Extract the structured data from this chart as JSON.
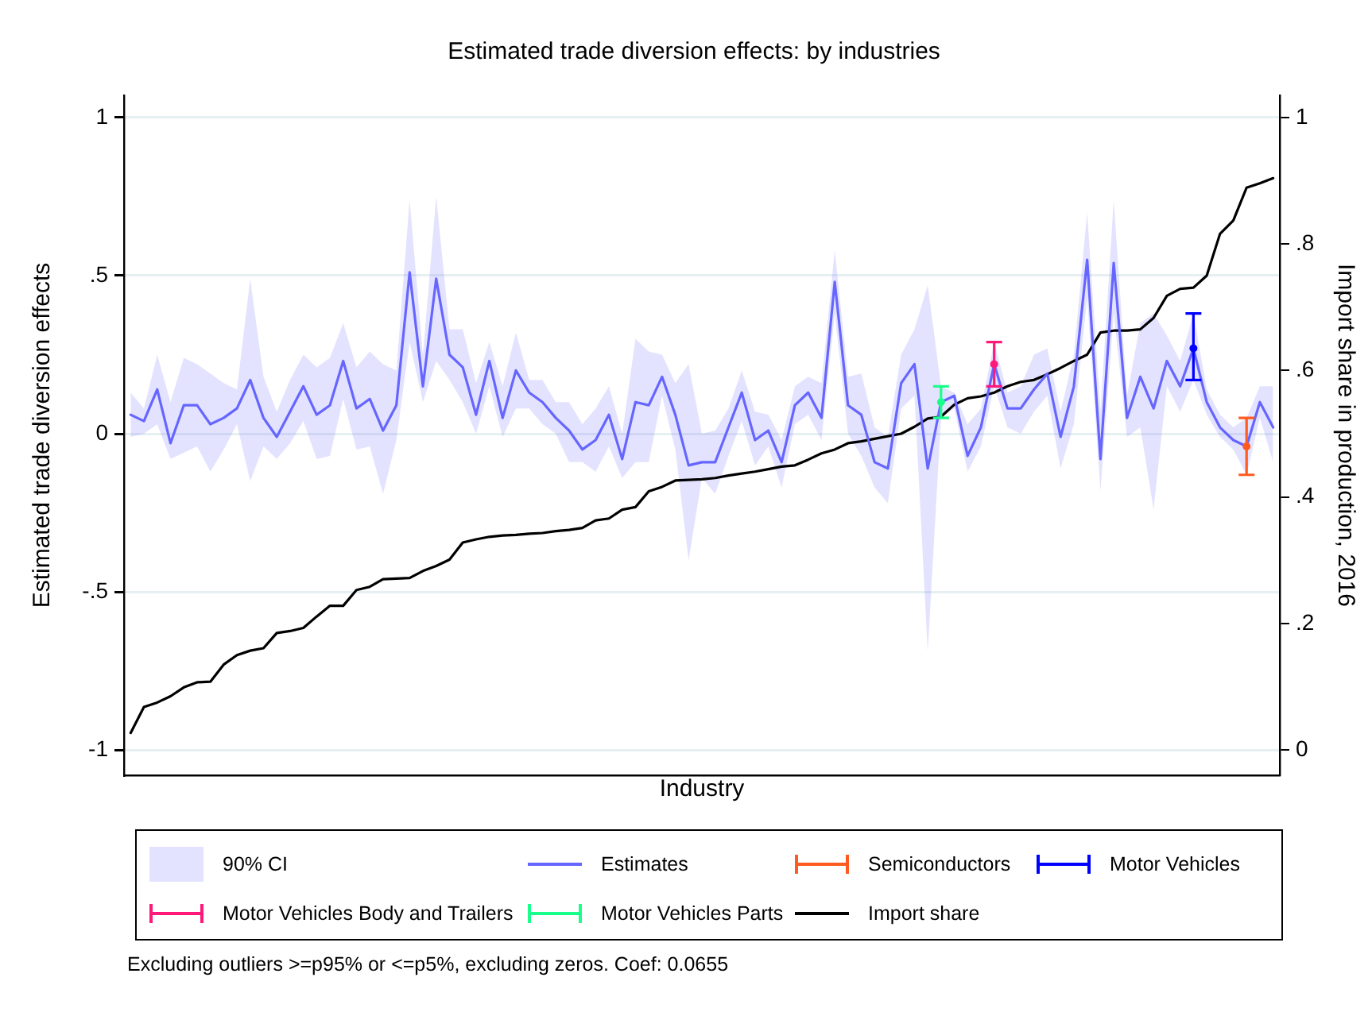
{
  "chart_data": {
    "type": "line",
    "title": "Estimated trade diversion effects: by industries",
    "xlabel": "Industry",
    "ylabel": "Estimated trade diversion effects",
    "y2label": "Import share in production, 2016",
    "categories": [
      null,
      null,
      null,
      null,
      null,
      null,
      null,
      null,
      null,
      null,
      null,
      null,
      null,
      null,
      null,
      null,
      null,
      null,
      null,
      null,
      null,
      null,
      null,
      null,
      null,
      null,
      null,
      null,
      null,
      null,
      null,
      null,
      null,
      null,
      null,
      null,
      null,
      null,
      null,
      null,
      null,
      null,
      null,
      null,
      null,
      null,
      null,
      null,
      null,
      null,
      null,
      null,
      null,
      null,
      null,
      null,
      null,
      null,
      null,
      null,
      null,
      null,
      null,
      null,
      null,
      null,
      null,
      null,
      null,
      null,
      null,
      null,
      null,
      null,
      null,
      null,
      null,
      null,
      null,
      null,
      null,
      null,
      null,
      null,
      null,
      null,
      null
    ],
    "series": [
      {
        "name": "Estimates",
        "color": "#6666ff",
        "lower": [
          -0.01,
          0.0,
          0.03,
          -0.08,
          -0.06,
          -0.04,
          -0.12,
          -0.05,
          0.03,
          -0.15,
          -0.04,
          -0.08,
          -0.03,
          0.04,
          -0.08,
          -0.07,
          0.11,
          -0.05,
          -0.04,
          -0.19,
          -0.02,
          0.29,
          0.1,
          0.23,
          0.17,
          0.1,
          0.0,
          0.15,
          -0.01,
          0.08,
          0.08,
          0.03,
          0.0,
          -0.09,
          -0.09,
          -0.12,
          -0.04,
          -0.14,
          -0.09,
          -0.09,
          0.12,
          -0.05,
          -0.4,
          -0.14,
          -0.19,
          -0.07,
          0.04,
          -0.1,
          -0.04,
          -0.17,
          0.03,
          0.06,
          -0.02,
          0.38,
          0.0,
          -0.07,
          -0.17,
          -0.22,
          0.08,
          0.12,
          -0.69,
          0.05,
          0.08,
          -0.12,
          -0.04,
          0.15,
          0.02,
          0.0,
          0.07,
          0.12,
          -0.11,
          0.03,
          0.43,
          -0.18,
          0.38,
          -0.01,
          0.02,
          -0.24,
          0.15,
          0.07,
          0.17,
          0.06,
          -0.01,
          -0.05,
          -0.13,
          0.05,
          -0.09
        ],
        "upper": [
          0.13,
          0.08,
          0.25,
          0.1,
          0.24,
          0.22,
          0.19,
          0.16,
          0.14,
          0.49,
          0.18,
          0.07,
          0.17,
          0.25,
          0.21,
          0.24,
          0.35,
          0.21,
          0.26,
          0.22,
          0.2,
          0.74,
          0.25,
          0.75,
          0.33,
          0.33,
          0.16,
          0.29,
          0.15,
          0.32,
          0.17,
          0.17,
          0.1,
          0.1,
          0.03,
          0.08,
          0.15,
          0.0,
          0.3,
          0.26,
          0.25,
          0.16,
          0.22,
          0.0,
          0.01,
          0.08,
          0.2,
          0.07,
          0.06,
          -0.02,
          0.15,
          0.18,
          0.16,
          0.58,
          0.18,
          0.19,
          0.02,
          -0.01,
          0.25,
          0.33,
          0.47,
          0.15,
          0.13,
          0.03,
          0.08,
          0.29,
          0.13,
          0.15,
          0.25,
          0.27,
          0.07,
          0.25,
          0.7,
          0.07,
          0.74,
          0.12,
          0.35,
          0.38,
          0.31,
          0.23,
          0.38,
          0.14,
          0.06,
          0.02,
          0.05,
          0.15,
          0.15
        ],
        "values": [
          0.06,
          0.04,
          0.14,
          -0.03,
          0.09,
          0.09,
          0.03,
          0.05,
          0.08,
          0.17,
          0.05,
          -0.01,
          0.07,
          0.15,
          0.06,
          0.09,
          0.23,
          0.08,
          0.11,
          0.01,
          0.09,
          0.51,
          0.15,
          0.49,
          0.25,
          0.21,
          0.06,
          0.23,
          0.05,
          0.2,
          0.13,
          0.1,
          0.05,
          0.01,
          -0.05,
          -0.02,
          0.06,
          -0.08,
          0.1,
          0.09,
          0.18,
          0.06,
          -0.1,
          -0.09,
          -0.09,
          0.02,
          0.13,
          -0.02,
          0.01,
          -0.09,
          0.09,
          0.13,
          0.05,
          0.48,
          0.09,
          0.06,
          -0.09,
          -0.11,
          0.16,
          0.22,
          -0.11,
          0.1,
          0.12,
          -0.07,
          0.02,
          0.22,
          0.08,
          0.08,
          0.14,
          0.19,
          -0.01,
          0.15,
          0.55,
          -0.08,
          0.54,
          0.05,
          0.18,
          0.08,
          0.23,
          0.15,
          0.27,
          0.1,
          0.02,
          -0.02,
          -0.04,
          0.1,
          0.02
        ]
      },
      {
        "name": "Semiconductors",
        "type": "scatter",
        "color": "#ff5a1f",
        "values": [
          null,
          null,
          null,
          null,
          null,
          null,
          null,
          null,
          null,
          null,
          null,
          null,
          null,
          null,
          null,
          null,
          null,
          null,
          null,
          null,
          null,
          null,
          null,
          null,
          null,
          null,
          null,
          null,
          null,
          null,
          null,
          null,
          null,
          null,
          null,
          null,
          null,
          null,
          null,
          null,
          null,
          null,
          null,
          null,
          null,
          null,
          null,
          null,
          null,
          null,
          null,
          null,
          null,
          null,
          null,
          null,
          null,
          null,
          null,
          null,
          null,
          null,
          null,
          null,
          null,
          null,
          null,
          null,
          null,
          null,
          null,
          null,
          null,
          null,
          null,
          null,
          null,
          null,
          null,
          null,
          null,
          null,
          null,
          null,
          -0.04,
          null,
          null
        ],
        "errors": [
          null,
          null,
          null,
          null,
          null,
          null,
          null,
          null,
          null,
          null,
          null,
          null,
          null,
          null,
          null,
          null,
          null,
          null,
          null,
          null,
          null,
          null,
          null,
          null,
          null,
          null,
          null,
          null,
          null,
          null,
          null,
          null,
          null,
          null,
          null,
          null,
          null,
          null,
          null,
          null,
          null,
          null,
          null,
          null,
          null,
          null,
          null,
          null,
          null,
          null,
          null,
          null,
          null,
          null,
          null,
          null,
          null,
          null,
          null,
          null,
          null,
          null,
          null,
          null,
          null,
          null,
          null,
          null,
          null,
          null,
          null,
          null,
          null,
          null,
          null,
          null,
          null,
          null,
          null,
          null,
          null,
          null,
          null,
          null,
          [
            -0.13,
            0.05
          ],
          null,
          null
        ]
      },
      {
        "name": "Motor Vehicles",
        "type": "scatter",
        "color": "#0000ff",
        "values": [
          null,
          null,
          null,
          null,
          null,
          null,
          null,
          null,
          null,
          null,
          null,
          null,
          null,
          null,
          null,
          null,
          null,
          null,
          null,
          null,
          null,
          null,
          null,
          null,
          null,
          null,
          null,
          null,
          null,
          null,
          null,
          null,
          null,
          null,
          null,
          null,
          null,
          null,
          null,
          null,
          null,
          null,
          null,
          null,
          null,
          null,
          null,
          null,
          null,
          null,
          null,
          null,
          null,
          null,
          null,
          null,
          null,
          null,
          null,
          null,
          null,
          null,
          null,
          null,
          null,
          null,
          null,
          null,
          null,
          null,
          null,
          null,
          null,
          null,
          null,
          null,
          null,
          null,
          null,
          null,
          0.27,
          null,
          null,
          null,
          null,
          null,
          null
        ],
        "errors": [
          null,
          null,
          null,
          null,
          null,
          null,
          null,
          null,
          null,
          null,
          null,
          null,
          null,
          null,
          null,
          null,
          null,
          null,
          null,
          null,
          null,
          null,
          null,
          null,
          null,
          null,
          null,
          null,
          null,
          null,
          null,
          null,
          null,
          null,
          null,
          null,
          null,
          null,
          null,
          null,
          null,
          null,
          null,
          null,
          null,
          null,
          null,
          null,
          null,
          null,
          null,
          null,
          null,
          null,
          null,
          null,
          null,
          null,
          null,
          null,
          null,
          null,
          null,
          null,
          null,
          null,
          null,
          null,
          null,
          null,
          null,
          null,
          null,
          null,
          null,
          null,
          null,
          null,
          null,
          null,
          [
            0.17,
            0.38
          ],
          null,
          null,
          null,
          null,
          null,
          null
        ]
      },
      {
        "name": "Motor Vehicles Body and Trailers",
        "type": "scatter",
        "color": "#ff1a7a",
        "values": [
          null,
          null,
          null,
          null,
          null,
          null,
          null,
          null,
          null,
          null,
          null,
          null,
          null,
          null,
          null,
          null,
          null,
          null,
          null,
          null,
          null,
          null,
          null,
          null,
          null,
          null,
          null,
          null,
          null,
          null,
          null,
          null,
          null,
          null,
          null,
          null,
          null,
          null,
          null,
          null,
          null,
          null,
          null,
          null,
          null,
          null,
          null,
          null,
          null,
          null,
          null,
          null,
          null,
          null,
          null,
          null,
          null,
          null,
          null,
          null,
          null,
          null,
          null,
          null,
          null,
          0.22,
          null,
          null,
          null,
          null,
          null,
          null,
          null,
          null,
          null,
          null,
          null,
          null,
          null,
          null,
          null,
          null,
          null,
          null,
          null,
          null,
          null
        ],
        "errors": [
          null,
          null,
          null,
          null,
          null,
          null,
          null,
          null,
          null,
          null,
          null,
          null,
          null,
          null,
          null,
          null,
          null,
          null,
          null,
          null,
          null,
          null,
          null,
          null,
          null,
          null,
          null,
          null,
          null,
          null,
          null,
          null,
          null,
          null,
          null,
          null,
          null,
          null,
          null,
          null,
          null,
          null,
          null,
          null,
          null,
          null,
          null,
          null,
          null,
          null,
          null,
          null,
          null,
          null,
          null,
          null,
          null,
          null,
          null,
          null,
          null,
          null,
          null,
          null,
          null,
          [
            0.15,
            0.29
          ],
          null,
          null,
          null,
          null,
          null,
          null,
          null,
          null,
          null,
          null,
          null,
          null,
          null,
          null,
          null,
          null,
          null,
          null,
          null,
          null,
          null
        ]
      },
      {
        "name": "Motor Vehicles Parts",
        "type": "scatter",
        "color": "#1aff8c",
        "values": [
          null,
          null,
          null,
          null,
          null,
          null,
          null,
          null,
          null,
          null,
          null,
          null,
          null,
          null,
          null,
          null,
          null,
          null,
          null,
          null,
          null,
          null,
          null,
          null,
          null,
          null,
          null,
          null,
          null,
          null,
          null,
          null,
          null,
          null,
          null,
          null,
          null,
          null,
          null,
          null,
          null,
          null,
          null,
          null,
          null,
          null,
          null,
          null,
          null,
          null,
          null,
          null,
          null,
          null,
          null,
          null,
          null,
          null,
          null,
          null,
          null,
          0.1,
          null,
          null,
          null,
          null,
          null,
          null,
          null,
          null,
          null,
          null,
          null,
          null,
          null,
          null,
          null,
          null,
          null,
          null,
          null,
          null,
          null,
          null,
          null,
          null,
          null
        ],
        "errors": [
          null,
          null,
          null,
          null,
          null,
          null,
          null,
          null,
          null,
          null,
          null,
          null,
          null,
          null,
          null,
          null,
          null,
          null,
          null,
          null,
          null,
          null,
          null,
          null,
          null,
          null,
          null,
          null,
          null,
          null,
          null,
          null,
          null,
          null,
          null,
          null,
          null,
          null,
          null,
          null,
          null,
          null,
          null,
          null,
          null,
          null,
          null,
          null,
          null,
          null,
          null,
          null,
          null,
          null,
          null,
          null,
          null,
          null,
          null,
          null,
          null,
          [
            0.05,
            0.15
          ],
          null,
          null,
          null,
          null,
          null,
          null,
          null,
          null,
          null,
          null,
          null,
          null,
          null,
          null,
          null,
          null,
          null,
          null,
          null,
          null,
          null,
          null,
          null,
          null,
          null
        ]
      },
      {
        "name": "Import share",
        "axis": "y2",
        "color": "#000000",
        "values": [
          0.027,
          0.068,
          0.075,
          0.085,
          0.099,
          0.107,
          0.108,
          0.135,
          0.15,
          0.157,
          0.161,
          0.185,
          0.188,
          0.193,
          0.211,
          0.228,
          0.228,
          0.253,
          0.258,
          0.27,
          0.271,
          0.272,
          0.283,
          0.291,
          0.301,
          0.328,
          0.333,
          0.337,
          0.339,
          0.34,
          0.342,
          0.343,
          0.346,
          0.348,
          0.351,
          0.363,
          0.366,
          0.38,
          0.384,
          0.409,
          0.416,
          0.426,
          0.427,
          0.428,
          0.43,
          0.434,
          0.437,
          0.44,
          0.444,
          0.448,
          0.45,
          0.459,
          0.469,
          0.475,
          0.485,
          0.488,
          0.492,
          0.496,
          0.5,
          0.511,
          0.524,
          0.527,
          0.546,
          0.556,
          0.559,
          0.565,
          0.575,
          0.582,
          0.585,
          0.594,
          0.604,
          0.615,
          0.625,
          0.66,
          0.663,
          0.663,
          0.665,
          0.683,
          0.718,
          0.729,
          0.731,
          0.75,
          0.816,
          0.837,
          0.889,
          0.896,
          0.904
        ]
      }
    ],
    "ylim": [
      -1.08,
      1.07
    ],
    "yticks": [
      -1,
      {
        "value": -0.5,
        "label": "-.5"
      },
      0,
      {
        "value": 0.5,
        "label": ".5"
      },
      1
    ],
    "y2lim": [
      -0.04,
      1.035
    ],
    "y2ticks": [
      0,
      {
        "value": 0.2,
        "label": ".2"
      },
      {
        "value": 0.4,
        "label": ".4"
      },
      {
        "value": 0.6,
        "label": ".6"
      },
      {
        "value": 0.8,
        "label": ".8"
      },
      1
    ],
    "grid": "y",
    "legend": "bottom",
    "tick_labels": "y",
    "annotations": [
      "90% CI",
      "Excluding outliers >=p95% or <=p5%, excluding zeros. Coef: 0.0655"
    ]
  }
}
